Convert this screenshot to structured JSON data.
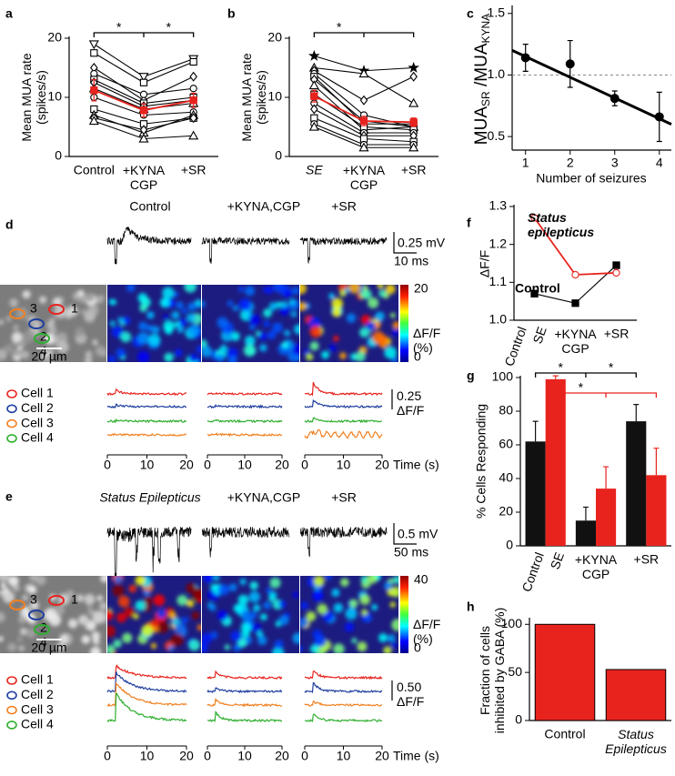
{
  "chart_data": [
    {
      "panel_label": "a",
      "type": "line",
      "ylabel": "Mean MUA rate\n(spikes/s)",
      "categories": [
        "Control",
        "+KYNA\nCGP",
        "+SR"
      ],
      "ylim": [
        0,
        20
      ],
      "yticks": [
        0,
        10,
        20
      ],
      "significance": [
        {
          "color": "#000000",
          "labels": [
            "*",
            "*"
          ]
        }
      ],
      "series": [
        {
          "color": "#000000",
          "marker": "triangle-down",
          "values": [
            19,
            13.5,
            16.5
          ]
        },
        {
          "color": "#000000",
          "marker": "square",
          "values": [
            17.5,
            12.5,
            16
          ]
        },
        {
          "color": "#000000",
          "marker": "diamond",
          "values": [
            15,
            9.5,
            13.5
          ]
        },
        {
          "color": "#000000",
          "marker": "circle",
          "values": [
            14,
            10.5,
            11.5
          ]
        },
        {
          "color": "#000000",
          "marker": "square",
          "values": [
            13,
            9,
            10
          ]
        },
        {
          "color": "#000000",
          "marker": "diamond",
          "values": [
            12.5,
            8.5,
            9.5
          ]
        },
        {
          "color": "#000000",
          "marker": "triangle",
          "values": [
            11.5,
            8,
            9
          ]
        },
        {
          "color": "#000000",
          "marker": "circle",
          "values": [
            10,
            7,
            7.5
          ]
        },
        {
          "color": "#000000",
          "marker": "square",
          "values": [
            8,
            5.5,
            6.5
          ]
        },
        {
          "color": "#000000",
          "marker": "triangle",
          "values": [
            7,
            4,
            7
          ]
        },
        {
          "color": "#000000",
          "marker": "diamond",
          "values": [
            6.5,
            4.5,
            6.5
          ]
        },
        {
          "color": "#000000",
          "marker": "triangle",
          "values": [
            6,
            3,
            3.5
          ]
        },
        {
          "color": "#e8231e",
          "marker": "square",
          "marker_filled": true,
          "values": [
            11.2,
            7.8,
            9.5
          ],
          "errors": [
            1.8,
            1.1,
            1.2
          ]
        }
      ]
    },
    {
      "panel_label": "b",
      "type": "line",
      "ylabel": "Mean MUA rate\n(spikes/s)",
      "categories": [
        "SE",
        "+KYNA\nCGP",
        "+SR"
      ],
      "ylim": [
        0,
        20
      ],
      "yticks": [
        0,
        10,
        20
      ],
      "significance": [
        {
          "color": "#000000",
          "labels": [
            "*"
          ]
        }
      ],
      "series": [
        {
          "color": "#000000",
          "marker": "star",
          "values": [
            17,
            14.5,
            15
          ]
        },
        {
          "color": "#000000",
          "marker": "triangle",
          "values": [
            15,
            14,
            9
          ]
        },
        {
          "color": "#000000",
          "marker": "diamond",
          "values": [
            14.5,
            9.5,
            13.5
          ]
        },
        {
          "color": "#000000",
          "marker": "circle",
          "values": [
            14,
            7,
            5
          ]
        },
        {
          "color": "#000000",
          "marker": "square",
          "values": [
            13.5,
            5.5,
            5.5
          ]
        },
        {
          "color": "#000000",
          "marker": "diamond",
          "values": [
            13,
            6,
            5
          ]
        },
        {
          "color": "#000000",
          "marker": "triangle",
          "values": [
            12,
            4.5,
            5
          ]
        },
        {
          "color": "#000000",
          "marker": "square",
          "values": [
            10.5,
            5,
            4.5
          ]
        },
        {
          "color": "#000000",
          "marker": "circle",
          "values": [
            9,
            4,
            4
          ]
        },
        {
          "color": "#000000",
          "marker": "diamond",
          "values": [
            8,
            3.5,
            3.5
          ]
        },
        {
          "color": "#000000",
          "marker": "square",
          "values": [
            6.5,
            3,
            2.5
          ]
        },
        {
          "color": "#000000",
          "marker": "circle",
          "values": [
            5.5,
            2,
            2
          ]
        },
        {
          "color": "#000000",
          "marker": "triangle",
          "values": [
            5,
            1.5,
            1.5
          ]
        },
        {
          "color": "#e8231e",
          "marker": "square",
          "marker_filled": true,
          "values": [
            10.2,
            6,
            5.8
          ],
          "errors": [
            1,
            0.8,
            0.7
          ]
        }
      ]
    },
    {
      "panel_label": "c",
      "type": "scatter",
      "ylabel_parts": [
        "MUA",
        "SR",
        " /MUA",
        "KYNA"
      ],
      "xlabel": "Number of seizures",
      "x": [
        1,
        2,
        3,
        4
      ],
      "values": [
        1.14,
        1.09,
        0.81,
        0.66
      ],
      "errors": [
        0.11,
        0.19,
        0.06,
        0.2
      ],
      "color": "#000000",
      "xlim": [
        0.7,
        4.27
      ],
      "xticks": [
        1,
        2,
        3,
        4
      ],
      "ylim": [
        0.39,
        1.55
      ],
      "yticks": [
        {
          "value": 0.5,
          "label": "0.5"
        },
        {
          "value": 1.0,
          "label": "1.0"
        },
        {
          "value": 1.5,
          "label": "1.5"
        }
      ],
      "reference_line": 1.0,
      "fit": {
        "x": [
          0.7,
          4.27
        ],
        "y": [
          1.2,
          0.6
        ]
      }
    },
    {
      "panel_label": "f",
      "type": "line",
      "ylabel": "ΔF/F",
      "categories": [
        null,
        "+KYNA\nCGP",
        "+SR"
      ],
      "group_labels": [
        "Control",
        "SE"
      ],
      "ylim": [
        1.0,
        1.3
      ],
      "yticks": [
        {
          "value": 1.0,
          "label": "1.0"
        },
        {
          "value": 1.1,
          "label": "1.1"
        },
        {
          "value": 1.2,
          "label": "1.2"
        },
        {
          "value": 1.3,
          "label": "1.3"
        }
      ],
      "series": [
        {
          "name": "Control",
          "color": "#000000",
          "marker": "square",
          "marker_filled": true,
          "values": [
            1.07,
            1.045,
            1.145
          ]
        },
        {
          "name": "Status\nepilepticus",
          "color": "#e8231e",
          "marker": "circle",
          "values": [
            1.27,
            1.12,
            1.125
          ]
        }
      ]
    },
    {
      "panel_label": "g",
      "type": "bar",
      "ylabel": "% Cells Responding",
      "categories": [
        null,
        "+KYNA\nCGP",
        "+SR"
      ],
      "ylim": [
        0,
        100
      ],
      "yticks": [
        0,
        20,
        40,
        60,
        80,
        100
      ],
      "significance": [
        {
          "color": "#000000",
          "labels": [
            "*",
            "*"
          ]
        },
        {
          "color": "#e8231e",
          "labels": [
            "*"
          ]
        }
      ],
      "series": [
        {
          "name": "Control",
          "color": "#111111",
          "values": [
            62,
            15,
            74
          ],
          "errors": [
            12,
            8,
            10
          ]
        },
        {
          "name": "SE",
          "color": "#e8231e",
          "values": [
            99,
            34,
            42
          ],
          "errors": [
            2,
            13,
            16
          ]
        }
      ]
    },
    {
      "panel_label": "h",
      "type": "bar",
      "ylabel": "Fraction of cells\ninhibited by GABA (%)",
      "categories": [
        "Control",
        "Status\nEpilepticus"
      ],
      "values": [
        100,
        53
      ],
      "color": "#e8231e",
      "ylim": [
        0,
        105
      ],
      "yticks": [
        0,
        50,
        100
      ]
    }
  ],
  "recordings": [
    {
      "label": "d",
      "conditions": [
        "Control",
        "+KYNA,CGP",
        "+SR"
      ],
      "voltage_scale": "0.25 mV",
      "time_scale": "10 ms",
      "cell_numbers": [
        "1",
        "2",
        "3",
        "4"
      ],
      "image_scale": "20 µm",
      "colorbar_ticks": [
        0,
        20
      ],
      "colorbar_label": "ΔF/F\n(%)",
      "cells": [
        "Cell 1",
        "Cell 2",
        "Cell 3",
        "Cell 4"
      ],
      "trace_scale": "0.25\nΔF/F",
      "time_ticks": [
        0,
        10,
        20
      ],
      "time_label": "Time (s)"
    },
    {
      "label": "e",
      "conditions": [
        "Status Epilepticus",
        "+KYNA,CGP",
        "+SR"
      ],
      "voltage_scale": "0.5 mV",
      "time_scale": "50 ms",
      "cell_numbers": [
        "1",
        "2",
        "3",
        "4"
      ],
      "image_scale": "20 µm",
      "colorbar_ticks": [
        0,
        40
      ],
      "colorbar_label": "ΔF/F\n(%)",
      "cells": [
        "Cell 1",
        "Cell 2",
        "Cell 3",
        "Cell 4"
      ],
      "trace_scale": "0.50\nΔF/F",
      "time_ticks": [
        0,
        10,
        20
      ],
      "time_label": "Time (s)"
    }
  ]
}
